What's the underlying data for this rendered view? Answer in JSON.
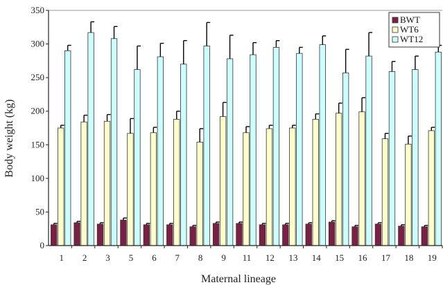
{
  "chart_data": {
    "type": "bar",
    "xlabel": "Maternal lineage",
    "ylabel": "Body weight (kg)",
    "ylim": [
      0,
      350
    ],
    "yticks": [
      0,
      50,
      100,
      150,
      200,
      250,
      300,
      350
    ],
    "grid": false,
    "legend_position": "top-right",
    "categories": [
      "1",
      "2",
      "3",
      "5",
      "6",
      "7",
      "8",
      "9",
      "11",
      "12",
      "13",
      "14",
      "15",
      "16",
      "17",
      "18",
      "19"
    ],
    "series": [
      {
        "name": "BWT",
        "color": "#7b1f45",
        "values": [
          31,
          34,
          32,
          38,
          31,
          31,
          28,
          33,
          33,
          31,
          31,
          32,
          35,
          28,
          32,
          29,
          28
        ],
        "errors": [
          2,
          2,
          2,
          3,
          2,
          2,
          2,
          2,
          2,
          2,
          2,
          2,
          2,
          2,
          2,
          2,
          2
        ]
      },
      {
        "name": "WT6",
        "color": "#ffffcc",
        "values": [
          175,
          184,
          185,
          167,
          168,
          188,
          154,
          192,
          168,
          174,
          175,
          188,
          197,
          199,
          159,
          151,
          171
        ],
        "errors": [
          4,
          10,
          10,
          22,
          8,
          12,
          20,
          21,
          9,
          5,
          4,
          8,
          15,
          21,
          8,
          12,
          5
        ]
      },
      {
        "name": "WT12",
        "color": "#ccffff",
        "values": [
          290,
          317,
          308,
          262,
          281,
          270,
          297,
          278,
          284,
          295,
          286,
          299,
          257,
          282,
          259,
          262,
          288
        ],
        "errors": [
          8,
          16,
          18,
          35,
          20,
          35,
          35,
          35,
          18,
          10,
          9,
          13,
          35,
          35,
          15,
          20,
          10
        ]
      }
    ]
  }
}
